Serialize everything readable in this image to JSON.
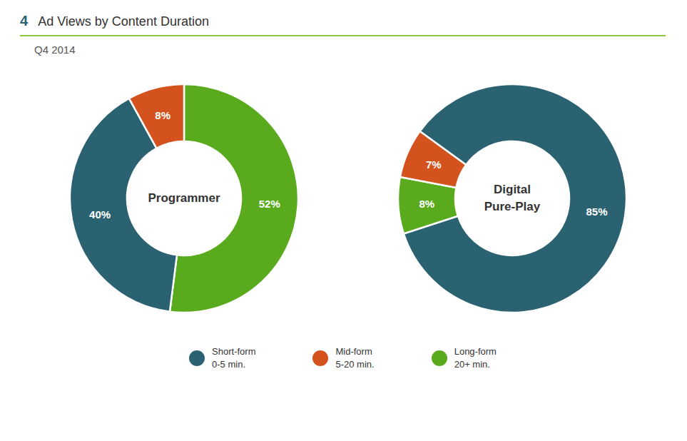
{
  "title": "Ad Views by Content Duration",
  "subtitle": "Q4 2014",
  "annotations": [
    "4"
  ],
  "legend": "bottom",
  "series": [
    {
      "name": "Short-form\n0-5 min.",
      "color": "#2b6272"
    },
    {
      "name": "Mid-form\n5-20 min.",
      "color": "#d4521e"
    },
    {
      "name": "Long-form\n20+ min.",
      "color": "#5aaa1e"
    }
  ],
  "chart_data": [
    {
      "type": "pie",
      "title": "Programmer",
      "categories": [
        "Long-form\n20+ min.",
        "Short-form\n0-5 min.",
        "Mid-form\n5-20 min."
      ],
      "values": [
        52,
        40,
        8
      ],
      "value_labels": [
        "52%",
        "40%",
        "8%"
      ],
      "colors": [
        "#5aaa1e",
        "#2b6272",
        "#d4521e"
      ],
      "data_labels": true
    },
    {
      "type": "pie",
      "title": "Digital\nPure-Play",
      "categories": [
        "Short-form\n0-5 min.",
        "Long-form\n20+ min.",
        "Mid-form\n5-20 min."
      ],
      "values": [
        85,
        8,
        7
      ],
      "value_labels": [
        "85%",
        "8%",
        "7%"
      ],
      "colors": [
        "#2b6272",
        "#5aaa1e",
        "#d4521e"
      ],
      "data_labels": true
    }
  ]
}
